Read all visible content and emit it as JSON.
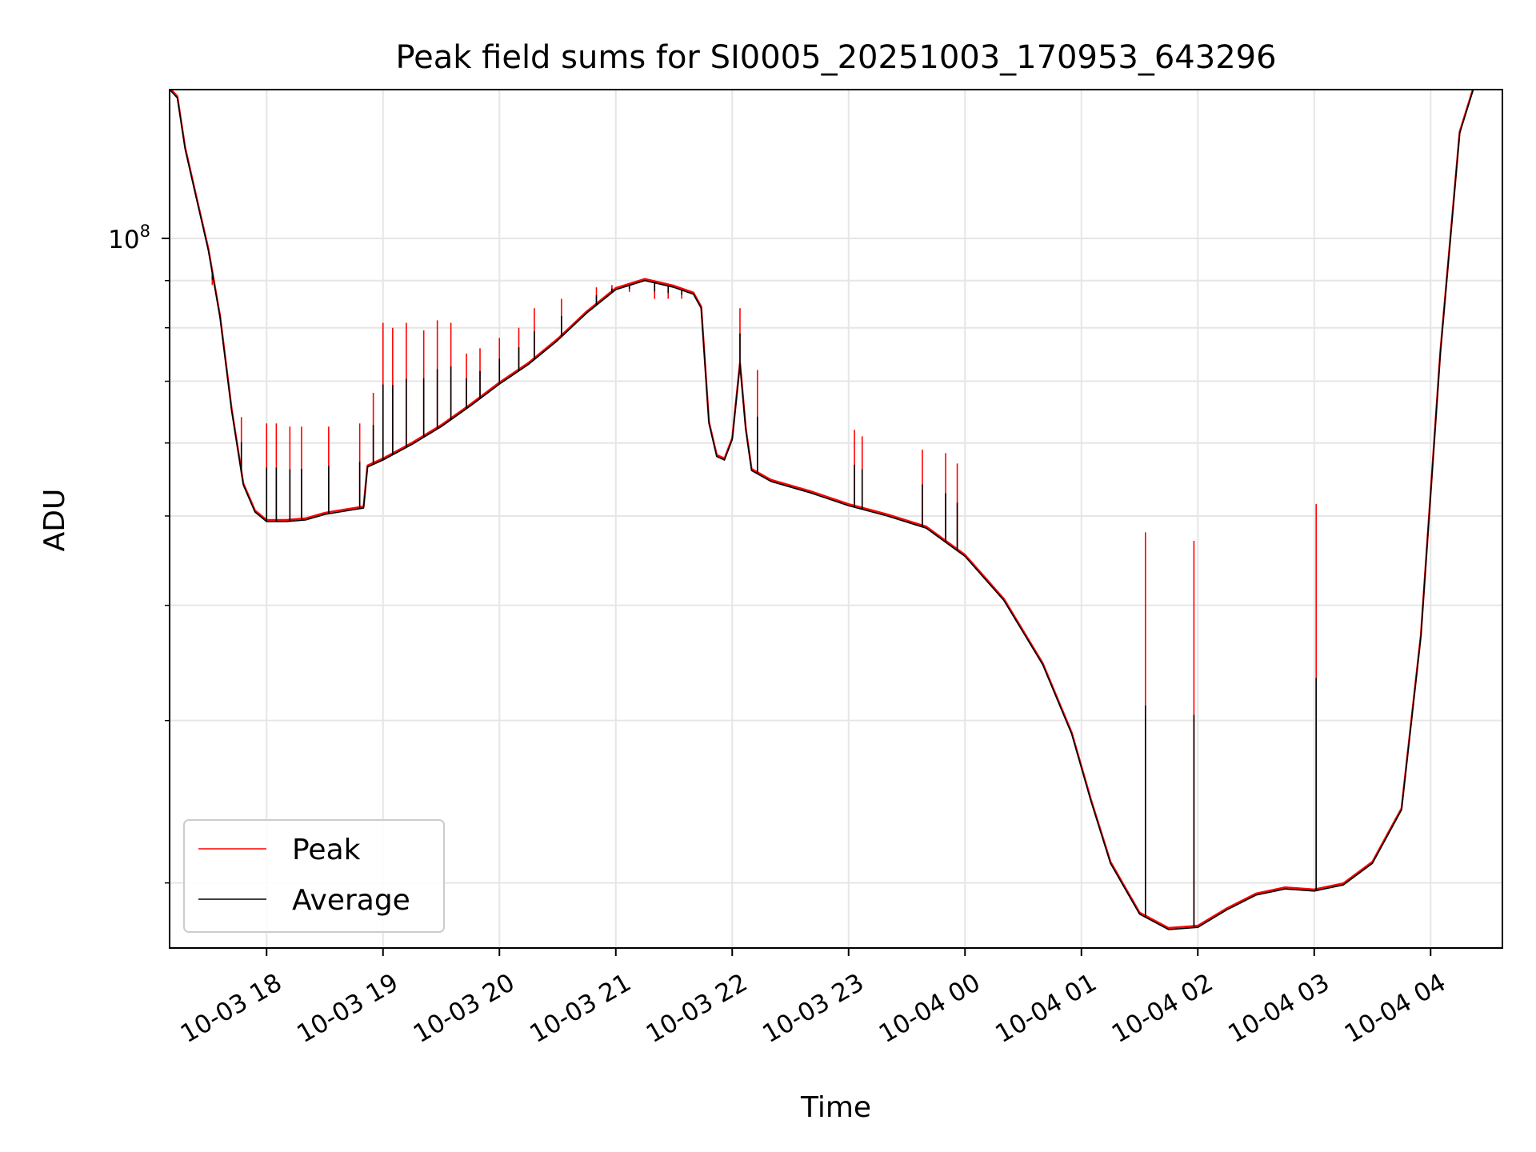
{
  "chart_data": {
    "type": "line",
    "title": "Peak field sums for SI0005_20251003_170953_643296",
    "xlabel": "Time",
    "ylabel": "ADU",
    "yscale": "log",
    "ylim": [
      17000000,
      145000000
    ],
    "xlim": [
      "2025-10-03 17:10",
      "2025-10-04 04:37"
    ],
    "x_ticks": [
      "10-03 18",
      "10-03 19",
      "10-03 20",
      "10-03 21",
      "10-03 22",
      "10-03 23",
      "10-04 00",
      "10-04 01",
      "10-04 02",
      "10-04 03",
      "10-04 04"
    ],
    "x_tick_times": [
      "2025-10-03 18:00",
      "2025-10-03 19:00",
      "2025-10-03 20:00",
      "2025-10-03 21:00",
      "2025-10-03 22:00",
      "2025-10-03 23:00",
      "2025-10-04 00:00",
      "2025-10-04 01:00",
      "2025-10-04 02:00",
      "2025-10-04 03:00",
      "2025-10-04 04:00"
    ],
    "y_major_ticks": [
      {
        "value": 100000000,
        "label": "10",
        "exponent": "8"
      }
    ],
    "y_minor_ticks": [
      20000000,
      30000000,
      40000000,
      50000000,
      60000000,
      70000000,
      80000000,
      90000000,
      200000000
    ],
    "grid": true,
    "legend": {
      "position": "lower-left"
    },
    "series": [
      {
        "name": "Peak",
        "color": "#ff0000"
      },
      {
        "name": "Average",
        "color": "#000000"
      }
    ],
    "average_points": [
      [
        "2025-10-03 17:10",
        145000000
      ],
      [
        "2025-10-03 17:14",
        142000000
      ],
      [
        "2025-10-03 17:18",
        125000000
      ],
      [
        "2025-10-03 17:24",
        110000000
      ],
      [
        "2025-10-03 17:30",
        97000000
      ],
      [
        "2025-10-03 17:36",
        82000000
      ],
      [
        "2025-10-03 17:42",
        65000000
      ],
      [
        "2025-10-03 17:48",
        54000000
      ],
      [
        "2025-10-03 17:54",
        50500000
      ],
      [
        "2025-10-03 18:00",
        49300000
      ],
      [
        "2025-10-03 18:10",
        49300000
      ],
      [
        "2025-10-03 18:20",
        49500000
      ],
      [
        "2025-10-03 18:30",
        50200000
      ],
      [
        "2025-10-03 18:45",
        50800000
      ],
      [
        "2025-10-03 18:50",
        51000000
      ],
      [
        "2025-10-03 18:52",
        56500000
      ],
      [
        "2025-10-03 19:00",
        57500000
      ],
      [
        "2025-10-03 19:15",
        59800000
      ],
      [
        "2025-10-03 19:30",
        62500000
      ],
      [
        "2025-10-03 19:45",
        65800000
      ],
      [
        "2025-10-03 20:00",
        69500000
      ],
      [
        "2025-10-03 20:15",
        73000000
      ],
      [
        "2025-10-03 20:30",
        77500000
      ],
      [
        "2025-10-03 20:45",
        83000000
      ],
      [
        "2025-10-03 21:00",
        88000000
      ],
      [
        "2025-10-03 21:15",
        90000000
      ],
      [
        "2025-10-03 21:30",
        88500000
      ],
      [
        "2025-10-03 21:40",
        87000000
      ],
      [
        "2025-10-03 21:44",
        84000000
      ],
      [
        "2025-10-03 21:48",
        63000000
      ],
      [
        "2025-10-03 21:52",
        58000000
      ],
      [
        "2025-10-03 21:56",
        57500000
      ],
      [
        "2025-10-03 22:00",
        60500000
      ],
      [
        "2025-10-03 22:04",
        73000000
      ],
      [
        "2025-10-03 22:07",
        62000000
      ],
      [
        "2025-10-03 22:10",
        56000000
      ],
      [
        "2025-10-03 22:20",
        54500000
      ],
      [
        "2025-10-03 22:40",
        53000000
      ],
      [
        "2025-10-03 23:00",
        51300000
      ],
      [
        "2025-10-03 23:20",
        50000000
      ],
      [
        "2025-10-03 23:40",
        48500000
      ],
      [
        "2025-10-04 00:00",
        45200000
      ],
      [
        "2025-10-04 00:20",
        40500000
      ],
      [
        "2025-10-04 00:40",
        34500000
      ],
      [
        "2025-10-04 00:55",
        29000000
      ],
      [
        "2025-10-04 01:05",
        24500000
      ],
      [
        "2025-10-04 01:15",
        21000000
      ],
      [
        "2025-10-04 01:30",
        18500000
      ],
      [
        "2025-10-04 01:45",
        17800000
      ],
      [
        "2025-10-04 02:00",
        17900000
      ],
      [
        "2025-10-04 02:15",
        18700000
      ],
      [
        "2025-10-04 02:30",
        19400000
      ],
      [
        "2025-10-04 02:45",
        19700000
      ],
      [
        "2025-10-04 03:00",
        19600000
      ],
      [
        "2025-10-04 03:15",
        19900000
      ],
      [
        "2025-10-04 03:30",
        21000000
      ],
      [
        "2025-10-04 03:45",
        24000000
      ],
      [
        "2025-10-04 03:55",
        37000000
      ],
      [
        "2025-10-04 04:05",
        75000000
      ],
      [
        "2025-10-04 04:15",
        130000000
      ],
      [
        "2025-10-04 04:22",
        145000000
      ],
      [
        "2025-10-04 04:37",
        145000000
      ]
    ],
    "peak_spikes": [
      [
        "2025-10-03 17:32",
        89000000
      ],
      [
        "2025-10-03 17:36",
        83000000
      ],
      [
        "2025-10-03 17:47",
        64000000
      ],
      [
        "2025-10-03 18:00",
        63000000
      ],
      [
        "2025-10-03 18:05",
        63000000
      ],
      [
        "2025-10-03 18:12",
        62500000
      ],
      [
        "2025-10-03 18:18",
        62500000
      ],
      [
        "2025-10-03 18:32",
        62500000
      ],
      [
        "2025-10-03 18:48",
        63000000
      ],
      [
        "2025-10-03 18:55",
        68000000
      ],
      [
        "2025-10-03 19:00",
        81000000
      ],
      [
        "2025-10-03 19:05",
        80000000
      ],
      [
        "2025-10-03 19:12",
        81000000
      ],
      [
        "2025-10-03 19:21",
        79500000
      ],
      [
        "2025-10-03 19:28",
        81500000
      ],
      [
        "2025-10-03 19:35",
        81000000
      ],
      [
        "2025-10-03 19:43",
        75000000
      ],
      [
        "2025-10-03 19:50",
        76000000
      ],
      [
        "2025-10-03 20:00",
        78000000
      ],
      [
        "2025-10-03 20:10",
        80000000
      ],
      [
        "2025-10-03 20:18",
        84000000
      ],
      [
        "2025-10-03 20:32",
        86000000
      ],
      [
        "2025-10-03 20:50",
        88500000
      ],
      [
        "2025-10-03 20:58",
        89000000
      ],
      [
        "2025-10-03 21:07",
        87500000
      ],
      [
        "2025-10-03 21:20",
        86000000
      ],
      [
        "2025-10-03 21:27",
        86000000
      ],
      [
        "2025-10-03 21:34",
        86000000
      ],
      [
        "2025-10-03 22:04",
        84000000
      ],
      [
        "2025-10-03 22:13",
        72000000
      ],
      [
        "2025-10-03 23:03",
        62000000
      ],
      [
        "2025-10-03 23:07",
        61000000
      ],
      [
        "2025-10-03 23:38",
        59000000
      ],
      [
        "2025-10-03 23:50",
        58500000
      ],
      [
        "2025-10-03 23:56",
        57000000
      ],
      [
        "2025-10-04 01:33",
        48000000
      ],
      [
        "2025-10-04 01:58",
        47000000
      ],
      [
        "2025-10-04 03:01",
        51500000
      ]
    ]
  }
}
